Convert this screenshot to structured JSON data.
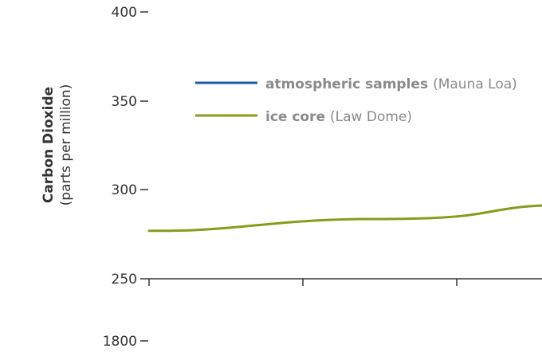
{
  "chart_data": {
    "type": "line",
    "ylabel": "Carbon Dioxide",
    "ylabel_sub": "(parts per million)",
    "yticks": [
      "400",
      "350",
      "300",
      "250"
    ],
    "ylim": [
      250,
      400
    ],
    "xticks": [
      "1800"
    ],
    "legend": {
      "placement": "top",
      "entries": [
        {
          "name": "atmospheric samples",
          "source": "(Mauna Loa)",
          "color": "#1f5aa6"
        },
        {
          "name": "ice core",
          "source": "(Law Dome)",
          "color": "#8a9a1b"
        }
      ]
    },
    "series": [
      {
        "name": "ice core",
        "source": "(Law Dome)",
        "color": "#8a9a1b",
        "x": [
          0,
          0.05,
          0.1,
          0.15,
          0.2,
          0.25,
          0.3,
          0.35,
          0.4,
          0.45,
          0.5,
          0.55,
          0.6,
          0.65,
          0.7,
          0.75,
          0.8,
          0.85,
          0.9,
          0.95,
          1.0
        ],
        "values": [
          277,
          277,
          277.2,
          277.8,
          278.6,
          279.6,
          280.6,
          281.6,
          282.4,
          283.0,
          283.4,
          283.6,
          283.6,
          283.7,
          284.0,
          284.5,
          285.4,
          287.0,
          288.9,
          290.4,
          291.2
        ]
      }
    ],
    "grid": false
  }
}
